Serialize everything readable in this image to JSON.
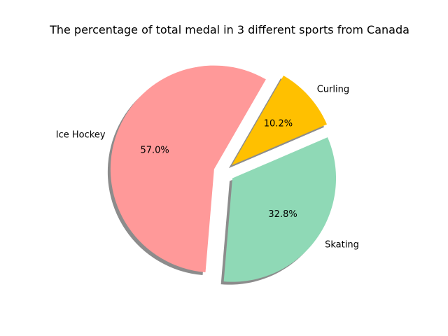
{
  "chart_data": {
    "type": "pie",
    "title": "The percentage of total medal in 3 different sports from Canada",
    "slices": [
      {
        "label": "Ice Hockey",
        "value": 57.0,
        "pct_text": "57.0%",
        "color": "#ff9999",
        "explode": 0.1
      },
      {
        "label": "Skating",
        "value": 32.8,
        "pct_text": "32.8%",
        "color": "#8fd9b6",
        "explode": 0.1
      },
      {
        "label": "Curling",
        "value": 10.2,
        "pct_text": "10.2%",
        "color": "#ffc000",
        "explode": 0.1
      }
    ],
    "start_angle_deg": 60,
    "counterclock": true,
    "shadow": true,
    "legend": false
  }
}
